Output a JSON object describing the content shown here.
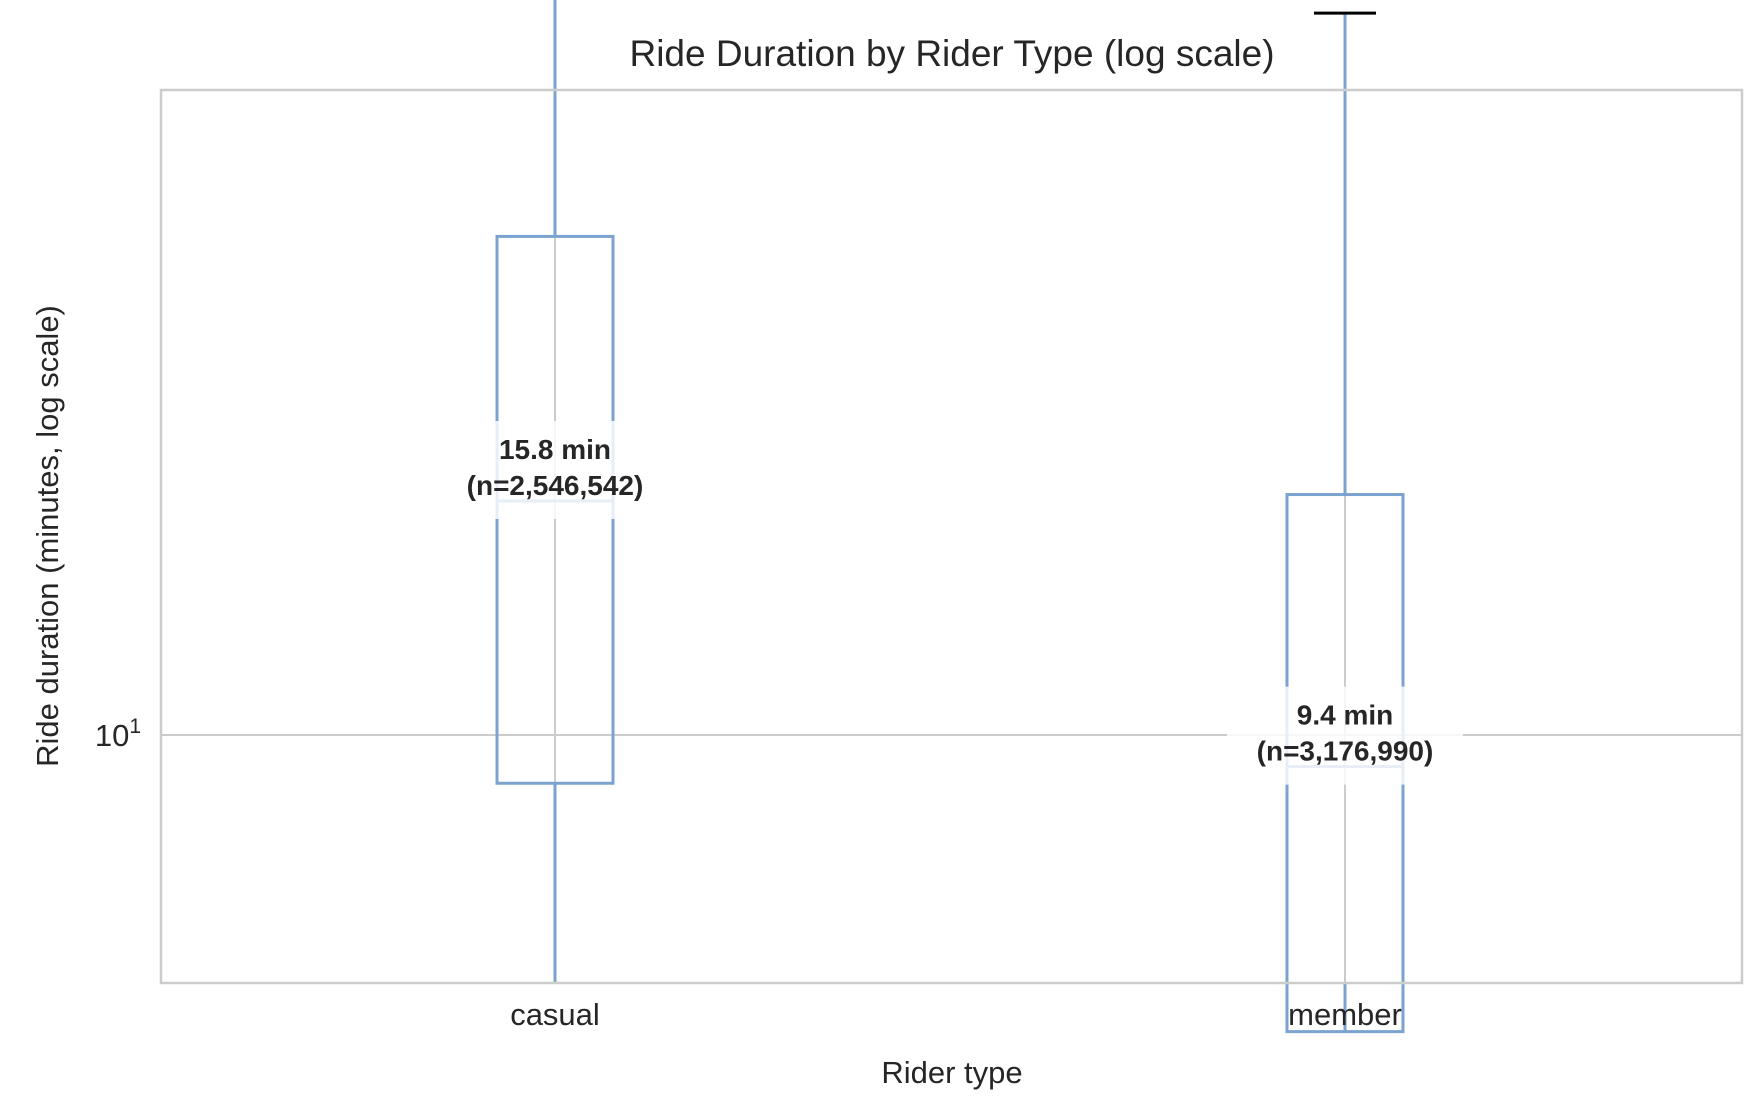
{
  "chart_data": {
    "type": "box",
    "title": "Ride Duration by Rider Type (log scale)",
    "xlabel": "Rider type",
    "ylabel": "Ride duration (minutes, log scale)",
    "yscale": "log",
    "ylim": [
      4.1,
      88
    ],
    "yticks": [
      {
        "value": 10,
        "base": "10",
        "exp": "1"
      }
    ],
    "grid": true,
    "box_color": "#7ba3d0",
    "cap_color": "#000000",
    "grid_color": "#cccccc",
    "categories": [
      "casual",
      "member"
    ],
    "boxes": [
      {
        "category": "casual",
        "whisker_low": 4.1,
        "q1": 9.1,
        "median": 15.8,
        "q3": 26.5,
        "whisker_high": 81.0,
        "annotation_line1": "15.8 min",
        "annotation_line2": "(n=2,546,542)"
      },
      {
        "category": "member",
        "whisker_low": 4.1,
        "q1": 5.6,
        "median": 9.4,
        "q3": 16.0,
        "whisker_high": 41.0,
        "annotation_line1": "9.4 min",
        "annotation_line2": "(n=3,176,990)"
      }
    ]
  }
}
